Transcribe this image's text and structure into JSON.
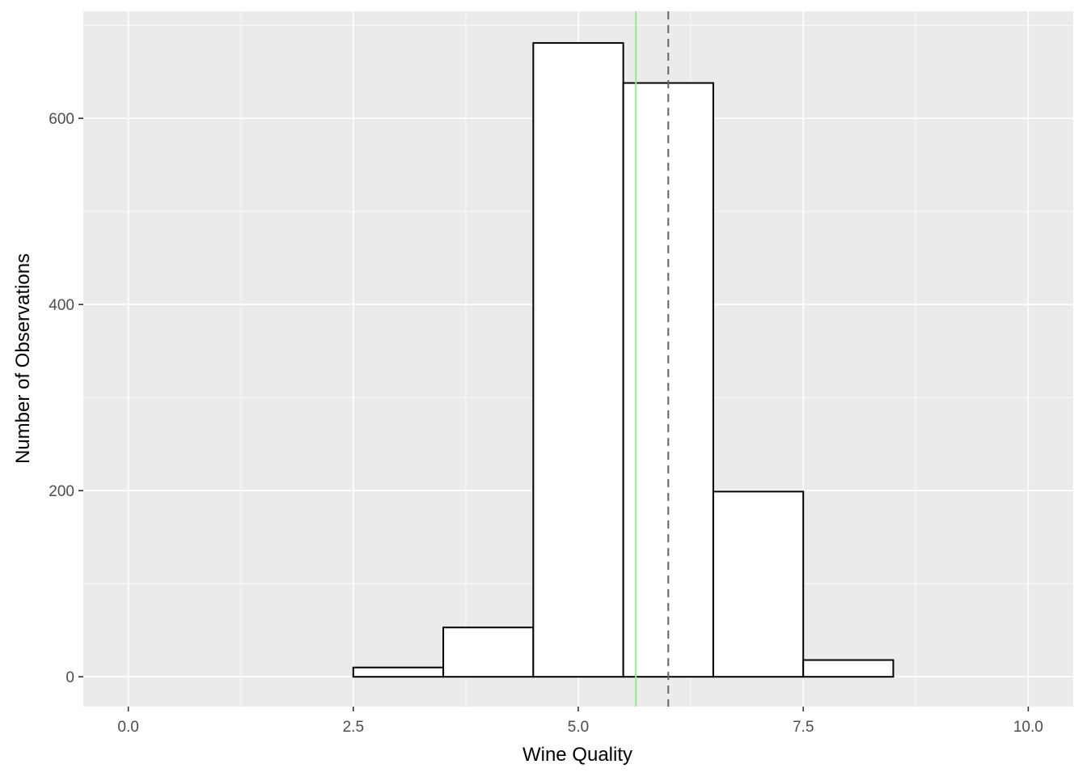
{
  "chart_data": {
    "type": "bar",
    "xlabel": "Wine Quality",
    "ylabel": "Number of Observations",
    "xlim": [
      -0.5,
      10.5
    ],
    "ylim": [
      -32,
      715
    ],
    "x_ticks": [
      0,
      2.5,
      5,
      7.5,
      10
    ],
    "x_tick_labels": [
      "0.0",
      "2.5",
      "5.0",
      "7.5",
      "10.0"
    ],
    "y_ticks": [
      0,
      200,
      400,
      600
    ],
    "y_tick_labels": [
      "0",
      "200",
      "400",
      "600"
    ],
    "bin_width": 1,
    "categories": [
      3,
      4,
      5,
      6,
      7,
      8
    ],
    "values": [
      10,
      53,
      681,
      638,
      199,
      18
    ],
    "reference_lines": [
      {
        "name": "mean",
        "x": 5.64,
        "style": "solid",
        "color": "#90ee90"
      },
      {
        "name": "median",
        "x": 6,
        "style": "dashed",
        "color": "#666666"
      }
    ],
    "grid": true,
    "colors": {
      "panel_background": "#ebebeb",
      "grid_major": "#ffffff",
      "bar_fill": "#ffffff",
      "bar_outline": "#000000"
    }
  }
}
